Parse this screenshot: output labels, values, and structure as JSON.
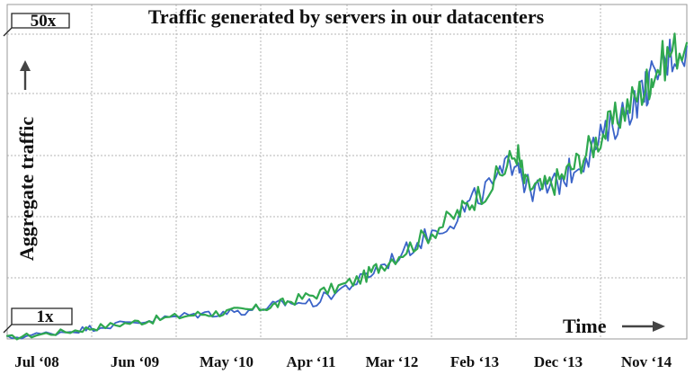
{
  "chart_data": {
    "type": "line",
    "title": "Traffic generated by servers in our datacenters",
    "ylabel": "Aggregate traffic",
    "xlabel": "Time",
    "x_ticks": [
      "Jul ‘08",
      "Jun ‘09",
      "May ‘10",
      "Apr ‘11",
      "Mar ‘12",
      "Feb ‘13",
      "Dec ‘13",
      "Nov ‘14"
    ],
    "xlim": [
      "2008-07",
      "2015-03"
    ],
    "y_scale": "linear",
    "ylim": [
      1,
      50
    ],
    "y_marker_labels": [
      {
        "text": "50x",
        "value": 50
      },
      {
        "text": "1x",
        "value": 1
      }
    ],
    "grid": true,
    "colors": {
      "series_a": "#2fa84f",
      "series_b": "#3a63c8",
      "grid": "#b4b4b4"
    },
    "series": [
      {
        "color": "#2fa84f",
        "x": [
          "2008-07",
          "2008-11",
          "2009-03",
          "2009-06",
          "2009-10",
          "2010-01",
          "2010-05",
          "2010-08",
          "2010-11",
          "2011-02",
          "2011-04",
          "2011-07",
          "2011-10",
          "2012-01",
          "2012-03",
          "2012-06",
          "2012-09",
          "2012-12",
          "2013-02",
          "2013-05",
          "2013-07",
          "2013-08",
          "2013-10",
          "2013-12",
          "2014-02",
          "2014-04",
          "2014-06",
          "2014-08",
          "2014-10",
          "2014-11",
          "2015-01",
          "2015-03"
        ],
        "values": [
          1.0,
          1.6,
          2.2,
          2.8,
          3.5,
          4.0,
          4.7,
          5.0,
          5.3,
          6.0,
          6.7,
          7.8,
          9.0,
          10.6,
          12.5,
          15.0,
          17.8,
          20.5,
          23.0,
          26.5,
          30.5,
          25.0,
          24.5,
          26.0,
          28.5,
          31.5,
          34.5,
          37.5,
          40.5,
          42.5,
          46.0,
          47.5
        ]
      },
      {
        "color": "#3a63c8",
        "x": [
          "2008-07",
          "2008-11",
          "2009-03",
          "2009-06",
          "2009-10",
          "2010-01",
          "2010-05",
          "2010-08",
          "2010-11",
          "2011-02",
          "2011-04",
          "2011-07",
          "2011-10",
          "2012-01",
          "2012-03",
          "2012-06",
          "2012-09",
          "2012-12",
          "2013-02",
          "2013-05",
          "2013-07",
          "2013-08",
          "2013-10",
          "2013-12",
          "2014-02",
          "2014-04",
          "2014-06",
          "2014-08",
          "2014-10",
          "2014-11",
          "2015-01",
          "2015-03"
        ],
        "values": [
          1.0,
          1.6,
          2.2,
          2.8,
          3.5,
          4.0,
          4.7,
          5.0,
          5.3,
          6.0,
          6.6,
          6.5,
          8.5,
          10.4,
          12.3,
          14.8,
          17.6,
          20.2,
          22.8,
          26.2,
          30.0,
          24.8,
          24.0,
          25.6,
          28.2,
          31.0,
          34.0,
          37.0,
          40.0,
          42.0,
          45.5,
          47.0
        ]
      }
    ]
  }
}
